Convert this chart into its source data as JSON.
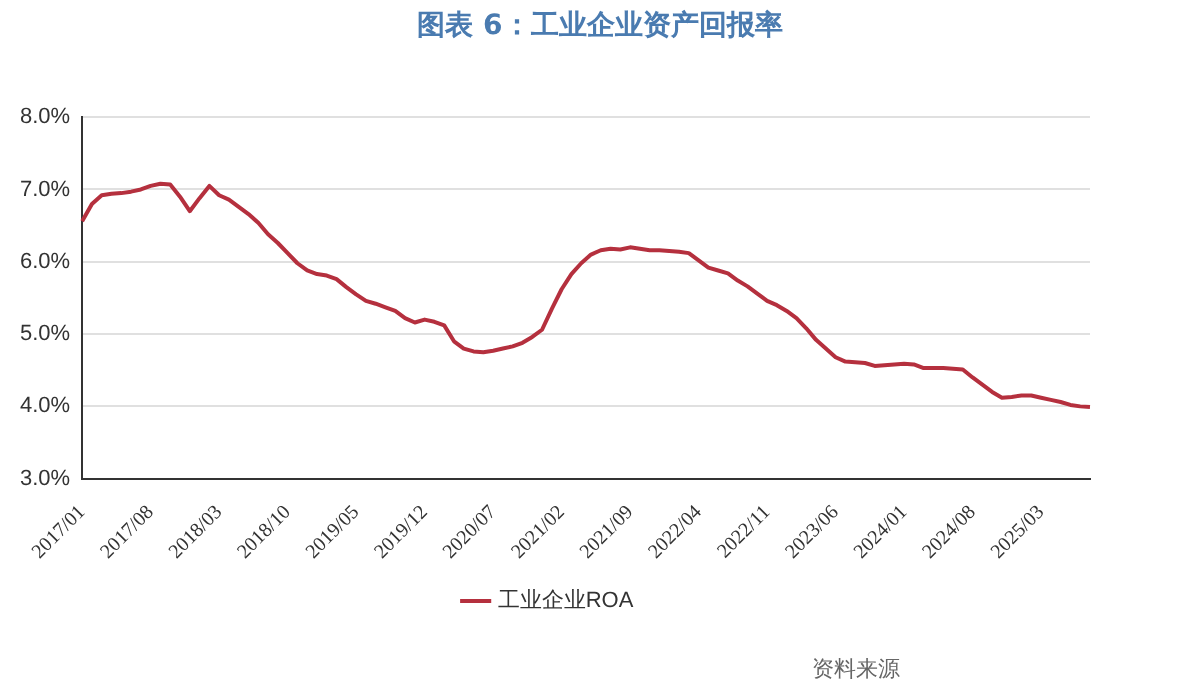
{
  "chart_data": {
    "type": "line",
    "title": "图表 6：工业企业资产回报率",
    "categories": [
      "2017/01",
      null,
      null,
      null,
      null,
      null,
      null,
      "2017/08",
      null,
      null,
      null,
      null,
      null,
      null,
      "2018/03",
      null,
      null,
      null,
      null,
      null,
      null,
      "2018/10",
      null,
      null,
      null,
      null,
      null,
      null,
      "2019/05",
      null,
      null,
      null,
      null,
      null,
      null,
      "2019/12",
      null,
      null,
      null,
      null,
      null,
      null,
      "2020/07",
      null,
      null,
      null,
      null,
      null,
      null,
      "2021/02",
      null,
      null,
      null,
      null,
      null,
      null,
      "2021/09",
      null,
      null,
      null,
      null,
      null,
      null,
      "2022/04",
      null,
      null,
      null,
      null,
      null,
      null,
      "2022/11",
      null,
      null,
      null,
      null,
      null,
      null,
      "2023/06",
      null,
      null,
      null,
      null,
      null,
      null,
      "2024/01",
      null,
      null,
      null,
      null,
      null,
      null,
      "2024/08",
      null,
      null,
      null,
      null,
      null,
      null,
      "2025/03",
      null,
      null,
      null,
      null,
      null
    ],
    "series": [
      {
        "name": "工业企业ROA",
        "color": "#b5303e",
        "values": [
          6.56,
          6.8,
          6.92,
          6.94,
          6.95,
          6.97,
          7.0,
          7.05,
          7.08,
          7.07,
          6.9,
          6.7,
          6.88,
          7.05,
          6.92,
          6.86,
          6.76,
          6.66,
          6.54,
          6.38,
          6.26,
          6.12,
          5.98,
          5.88,
          5.83,
          5.81,
          5.76,
          5.65,
          5.55,
          5.46,
          5.42,
          5.37,
          5.32,
          5.22,
          5.16,
          5.2,
          5.17,
          5.12,
          4.9,
          4.8,
          4.76,
          4.75,
          4.77,
          4.8,
          4.83,
          4.88,
          4.96,
          5.06,
          5.35,
          5.62,
          5.83,
          5.98,
          6.1,
          6.16,
          6.18,
          6.17,
          6.2,
          6.18,
          6.16,
          6.16,
          6.15,
          6.14,
          6.12,
          6.02,
          5.92,
          5.88,
          5.84,
          5.74,
          5.66,
          5.56,
          5.46,
          5.4,
          5.32,
          5.22,
          5.08,
          4.92,
          4.8,
          4.68,
          4.62,
          4.61,
          4.6,
          4.56,
          4.57,
          4.58,
          4.59,
          4.58,
          4.53,
          4.53,
          4.53,
          4.52,
          4.51,
          4.4,
          4.3,
          4.2,
          4.12,
          4.13,
          4.15,
          4.15,
          4.12,
          4.09,
          4.06,
          4.02,
          4.0,
          3.99
        ]
      }
    ],
    "ylim": [
      3,
      8
    ],
    "yticks": [
      {
        "value": 3,
        "label": "3.0%"
      },
      {
        "value": 4,
        "label": "4.0%"
      },
      {
        "value": 5,
        "label": "5.0%"
      },
      {
        "value": 6,
        "label": "6.0%"
      },
      {
        "value": 7,
        "label": "7.0%"
      },
      {
        "value": 8,
        "label": "8.0%"
      }
    ],
    "grid": "y",
    "legend": "bottom",
    "marker": "none",
    "line_style": "solid",
    "annotations": [
      "资料来源"
    ]
  }
}
